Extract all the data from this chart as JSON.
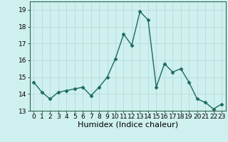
{
  "x": [
    0,
    1,
    2,
    3,
    4,
    5,
    6,
    7,
    8,
    9,
    10,
    11,
    12,
    13,
    14,
    15,
    16,
    17,
    18,
    19,
    20,
    21,
    22,
    23
  ],
  "y": [
    14.7,
    14.1,
    13.7,
    14.1,
    14.2,
    14.3,
    14.4,
    13.9,
    14.4,
    15.0,
    16.1,
    17.55,
    16.9,
    18.9,
    18.4,
    14.4,
    15.8,
    15.3,
    15.5,
    14.7,
    13.7,
    13.5,
    13.1,
    13.4
  ],
  "line_color": "#1a6b5e",
  "marker": "D",
  "marker_size": 2.5,
  "background_color": "#cef0ee",
  "grid_color": "#b8dbd8",
  "xlabel": "Humidex (Indice chaleur)",
  "xlabel_fontsize": 8,
  "ylim": [
    13,
    19.5
  ],
  "xlim": [
    -0.5,
    23.5
  ],
  "yticks": [
    13,
    14,
    15,
    16,
    17,
    18,
    19
  ],
  "xticks": [
    0,
    1,
    2,
    3,
    4,
    5,
    6,
    7,
    8,
    9,
    10,
    11,
    12,
    13,
    14,
    15,
    16,
    17,
    18,
    19,
    20,
    21,
    22,
    23
  ],
  "tick_fontsize": 6.5,
  "line_width": 1.0
}
